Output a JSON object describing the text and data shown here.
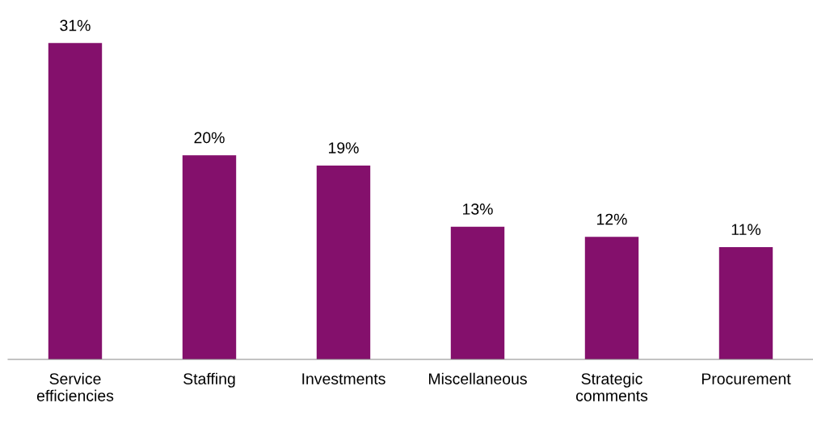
{
  "chart_data": {
    "type": "bar",
    "categories": [
      "Service\nefficiencies",
      "Staffing",
      "Investments",
      "Miscellaneous",
      "Strategic\ncomments",
      "Procurement"
    ],
    "values": [
      31,
      20,
      19,
      13,
      12,
      11
    ],
    "value_labels": [
      "31%",
      "20%",
      "19%",
      "13%",
      "12%",
      "11%"
    ],
    "color": "#84106c",
    "grid": false,
    "legend": false
  }
}
